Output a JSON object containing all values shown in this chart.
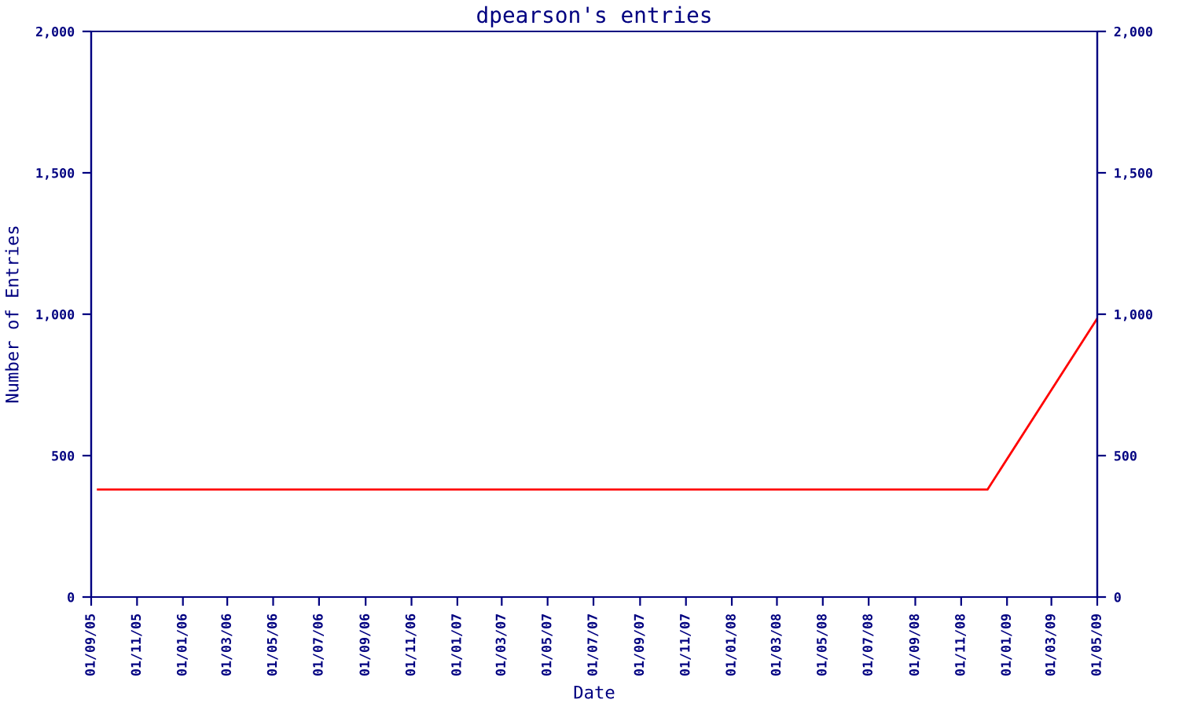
{
  "chart_data": {
    "type": "line",
    "title": "dpearson's entries",
    "xlabel": "Date",
    "ylabel": "Number of Entries",
    "x": [
      "2005-09-10",
      "2008-12-06",
      "2009-05-01"
    ],
    "series": [
      {
        "color": "#ff0000",
        "values": [
          380,
          380,
          985
        ]
      }
    ],
    "xlim": [
      "2005-09-01",
      "2009-05-01"
    ],
    "xticks": [
      {
        "value": "2005-09-01",
        "label": "01/09/05"
      },
      {
        "value": "2005-11-01",
        "label": "01/11/05"
      },
      {
        "value": "2006-01-01",
        "label": "01/01/06"
      },
      {
        "value": "2006-03-01",
        "label": "01/03/06"
      },
      {
        "value": "2006-05-01",
        "label": "01/05/06"
      },
      {
        "value": "2006-07-01",
        "label": "01/07/06"
      },
      {
        "value": "2006-09-01",
        "label": "01/09/06"
      },
      {
        "value": "2006-11-01",
        "label": "01/11/06"
      },
      {
        "value": "2007-01-01",
        "label": "01/01/07"
      },
      {
        "value": "2007-03-01",
        "label": "01/03/07"
      },
      {
        "value": "2007-05-01",
        "label": "01/05/07"
      },
      {
        "value": "2007-07-01",
        "label": "01/07/07"
      },
      {
        "value": "2007-09-01",
        "label": "01/09/07"
      },
      {
        "value": "2007-11-01",
        "label": "01/11/07"
      },
      {
        "value": "2008-01-01",
        "label": "01/01/08"
      },
      {
        "value": "2008-03-01",
        "label": "01/03/08"
      },
      {
        "value": "2008-05-01",
        "label": "01/05/08"
      },
      {
        "value": "2008-07-01",
        "label": "01/07/08"
      },
      {
        "value": "2008-09-01",
        "label": "01/09/08"
      },
      {
        "value": "2008-11-01",
        "label": "01/11/08"
      },
      {
        "value": "2009-01-01",
        "label": "01/01/09"
      },
      {
        "value": "2009-03-01",
        "label": "01/03/09"
      },
      {
        "value": "2009-05-01",
        "label": "01/05/09"
      }
    ],
    "ylim": [
      0,
      2000
    ],
    "yticks": [
      0,
      500,
      {
        "value": 1000,
        "label": "1,000"
      },
      {
        "value": 1500,
        "label": "1,500"
      },
      {
        "value": 2000,
        "label": "2,000"
      }
    ],
    "y2lim": [
      0,
      2000
    ],
    "y2ticks": [
      0,
      500,
      {
        "value": 1000,
        "label": "1,000"
      },
      {
        "value": 1500,
        "label": "1,500"
      },
      {
        "value": 2000,
        "label": "2,000"
      }
    ],
    "grid": false,
    "legend": false,
    "marker": "none",
    "line_style": "solid"
  }
}
